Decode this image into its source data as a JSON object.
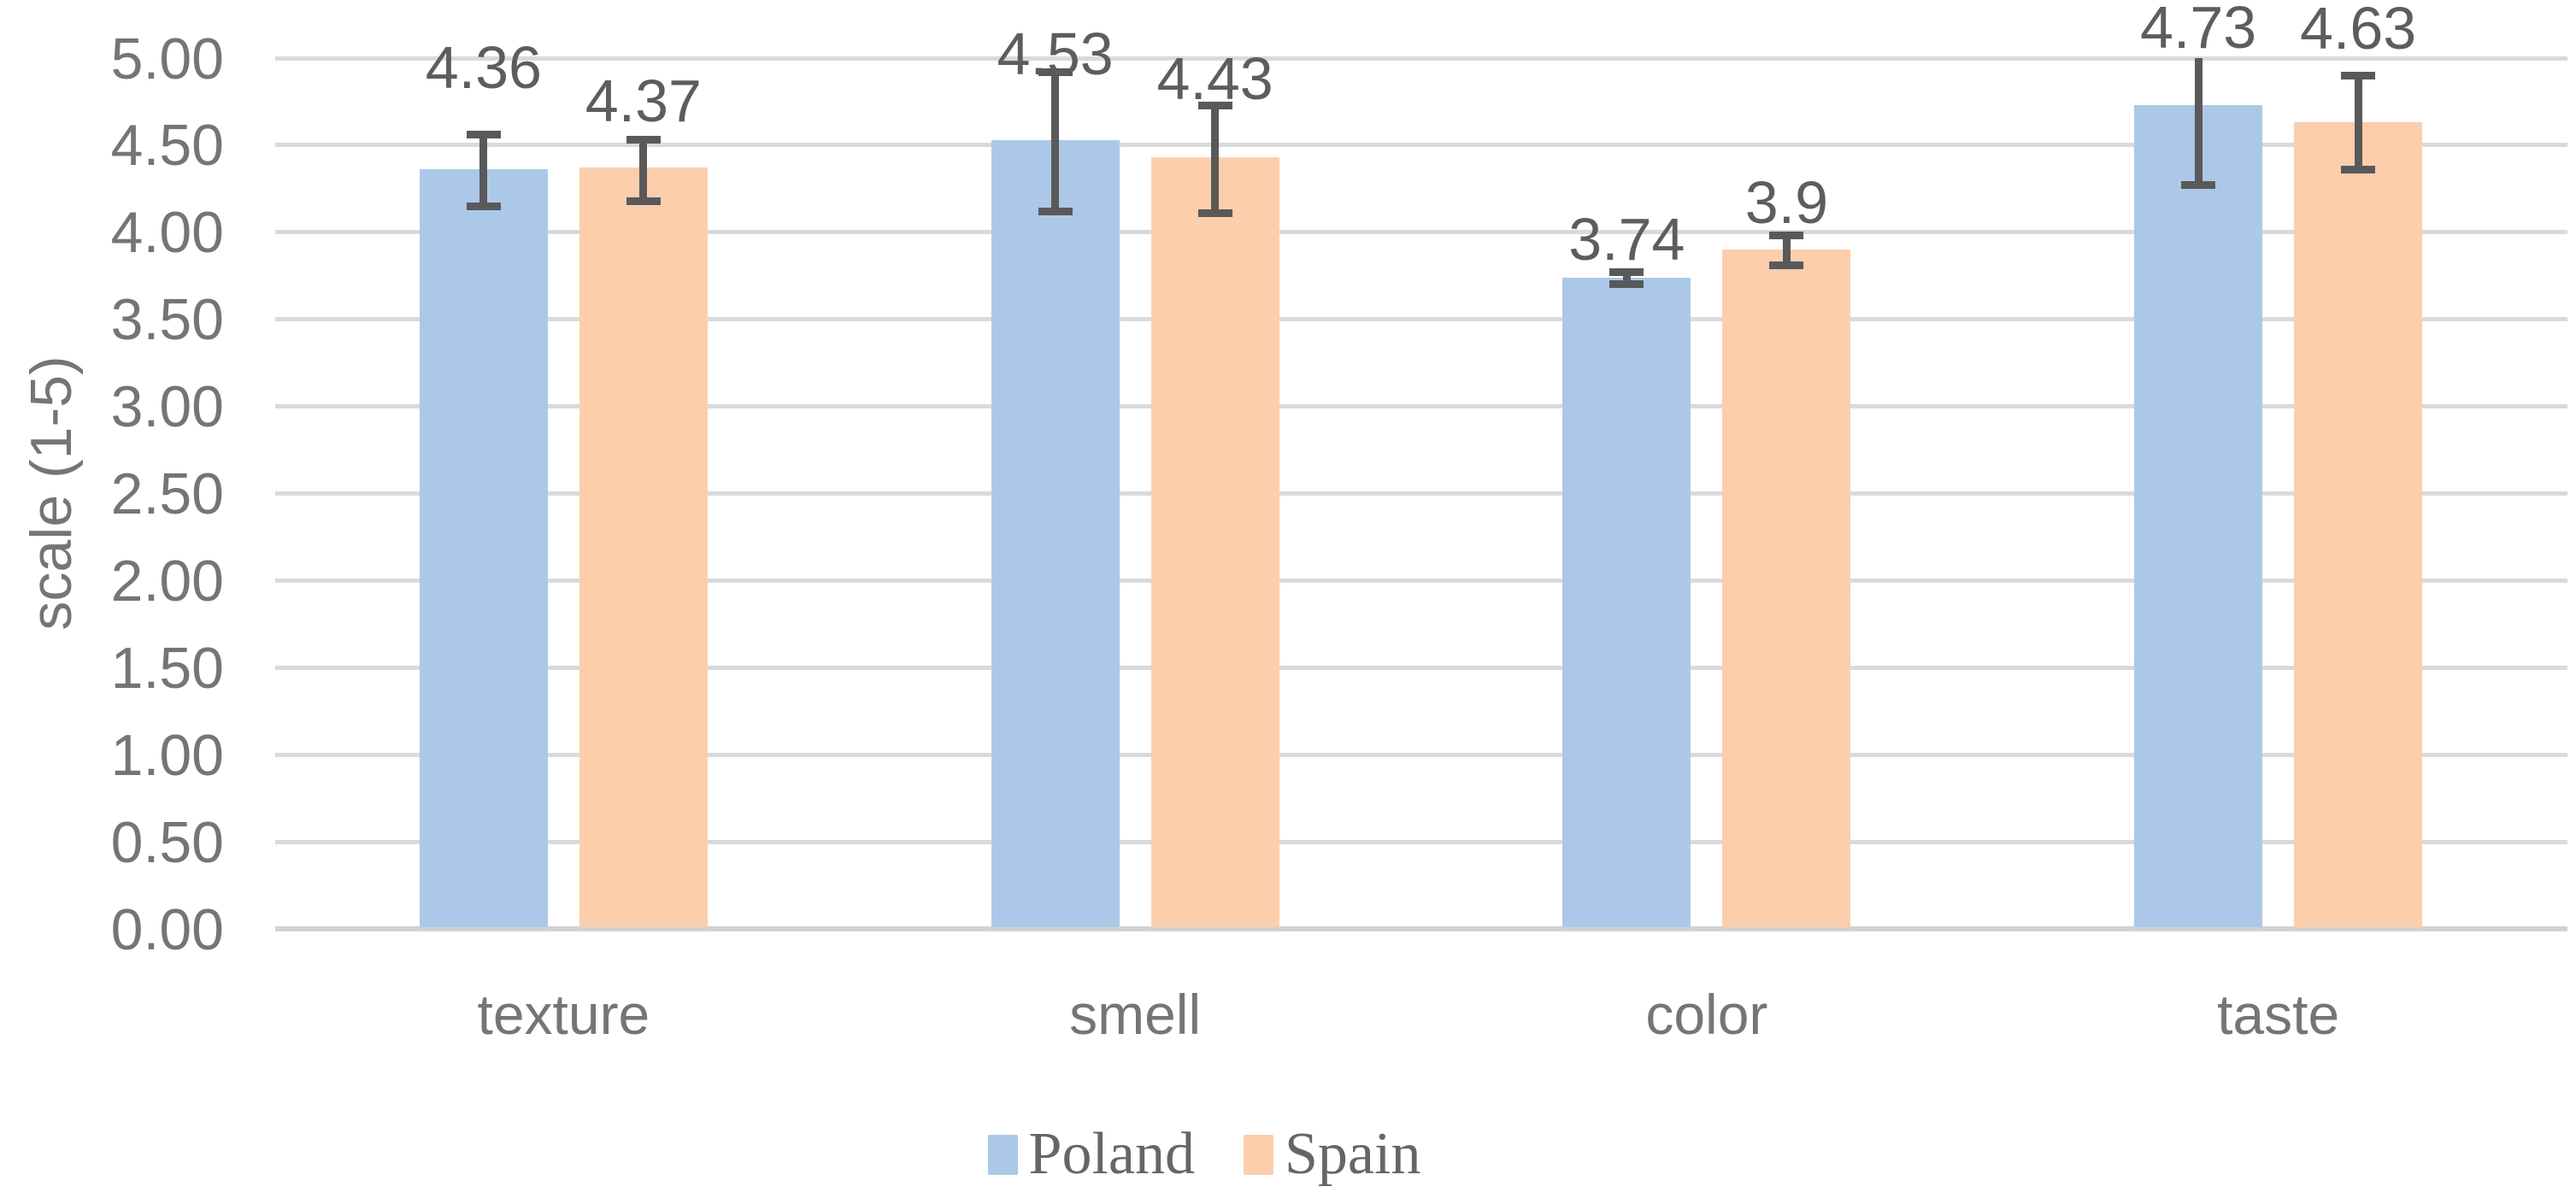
{
  "chart_data": {
    "type": "bar",
    "title": "",
    "categories": [
      "texture",
      "smell",
      "color",
      "taste"
    ],
    "series": [
      {
        "name": "Poland",
        "color": "#acc8e8",
        "values": [
          4.36,
          4.53,
          3.74,
          4.73
        ],
        "labels": [
          "4.36",
          "4.53",
          "3.74",
          "4.73"
        ],
        "error_plus": [
          0.2,
          0.39,
          0.03,
          0.46
        ],
        "error_minus": [
          0.21,
          0.41,
          0.04,
          0.46
        ]
      },
      {
        "name": "Spain",
        "color": "#fcceac",
        "values": [
          4.37,
          4.43,
          3.9,
          4.63
        ],
        "labels": [
          "4.37",
          "4.43",
          "3.9",
          "4.63"
        ],
        "error_plus": [
          0.16,
          0.3,
          0.08,
          0.27
        ],
        "error_minus": [
          0.19,
          0.32,
          0.09,
          0.27
        ]
      }
    ],
    "ylabel": "scale (1-5)",
    "ylim": [
      0,
      5
    ],
    "ytick_step": 0.5,
    "ytick_labels": [
      "0.00",
      "0.50",
      "1.00",
      "1.50",
      "2.00",
      "2.50",
      "3.00",
      "3.50",
      "4.00",
      "4.50",
      "5.00"
    ],
    "grid": true,
    "error_bars": true,
    "error_clip_max": 5.0,
    "legend_position": "bottom",
    "legend_entries": [
      "Poland",
      "Spain"
    ]
  },
  "colors": {
    "poland_bar": "#acc8e8",
    "spain_bar": "#fcceac",
    "gridline": "#dadada",
    "axis_line": "#d2d2d2",
    "error_bar": "#595959",
    "data_label_text": "#5d5d5d",
    "tick_text": "#757575",
    "legend_text": "#666666"
  }
}
